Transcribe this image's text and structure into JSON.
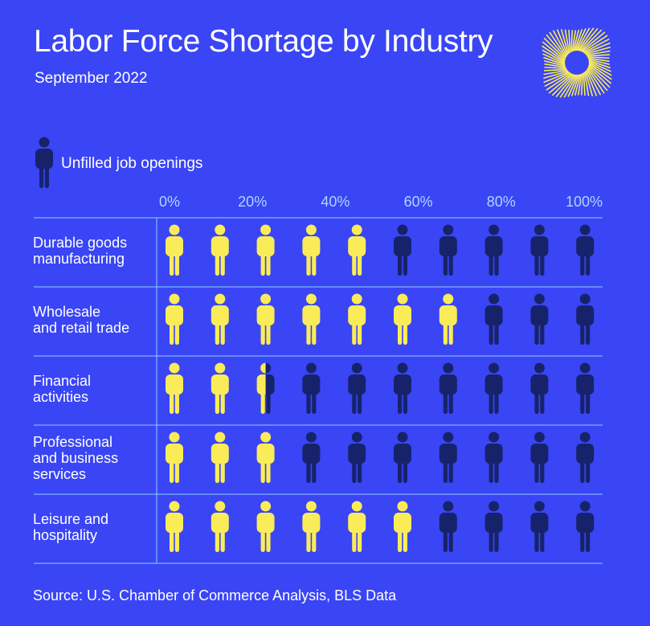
{
  "header": {
    "title": "Labor Force Shortage by Industry",
    "subtitle": "September 2022"
  },
  "legend": {
    "label": "Unfilled job openings",
    "icon": "person-icon"
  },
  "source": "Source: U.S. Chamber of Commerce Analysis, BLS Data",
  "colors": {
    "background": "#3a45f5",
    "filled": "#f9ec58",
    "unfilled": "#16236b",
    "grid": "#8fd0ff",
    "tick_text": "#a9d8ff"
  },
  "chart_data": {
    "type": "pictograph",
    "title": "Labor Force Shortage by Industry",
    "subtitle": "September 2022",
    "x_axis": {
      "ticks": [
        "0%",
        "20%",
        "40%",
        "60%",
        "80%",
        "100%"
      ],
      "range": [
        0,
        100
      ],
      "unit": "%"
    },
    "icons_per_row": 10,
    "legend": [
      "Unfilled job openings"
    ],
    "categories": [
      "Durable goods manufacturing",
      "Wholesale and retail trade",
      "Financial activities",
      "Professional and business services",
      "Leisure and hospitality"
    ],
    "category_lines": [
      [
        "Durable goods",
        "manufacturing"
      ],
      [
        "Wholesale",
        "and retail trade"
      ],
      [
        "Financial",
        "activities"
      ],
      [
        "Professional",
        "and business",
        "services"
      ],
      [
        "Leisure and",
        "hospitality"
      ]
    ],
    "values": [
      50,
      70,
      25,
      30,
      60
    ]
  }
}
